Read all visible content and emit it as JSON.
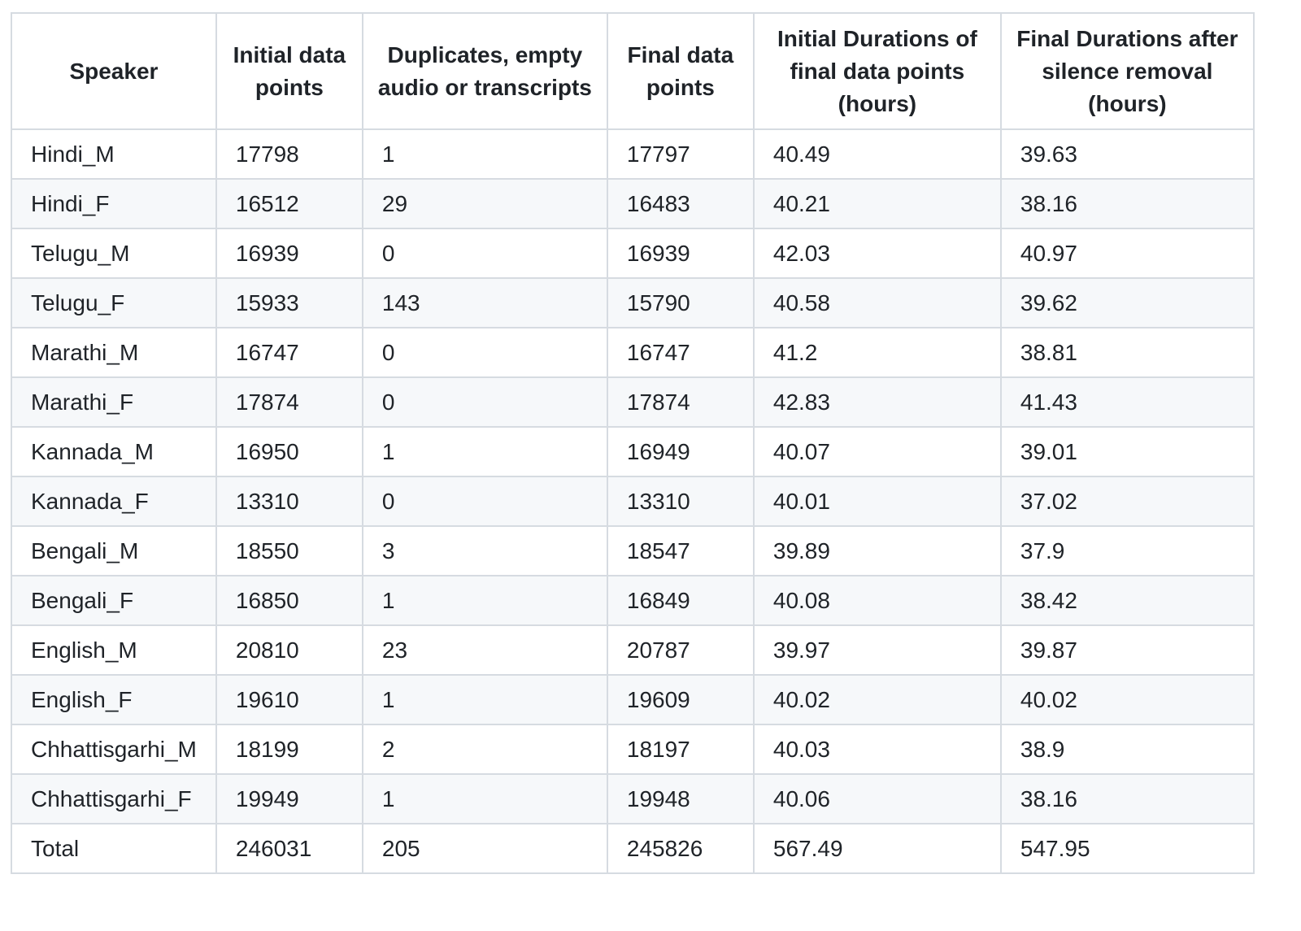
{
  "table": {
    "headers": [
      "Speaker",
      "Initial data points",
      "Duplicates, empty audio or transcripts",
      "Final data points",
      "Initial Durations of final data points (hours)",
      "Final Durations after silence removal (hours)"
    ],
    "rows": [
      [
        "Hindi_M",
        "17798",
        "1",
        "17797",
        "40.49",
        "39.63"
      ],
      [
        "Hindi_F",
        "16512",
        "29",
        "16483",
        "40.21",
        "38.16"
      ],
      [
        "Telugu_M",
        "16939",
        "0",
        "16939",
        "42.03",
        "40.97"
      ],
      [
        "Telugu_F",
        "15933",
        "143",
        "15790",
        "40.58",
        "39.62"
      ],
      [
        "Marathi_M",
        "16747",
        "0",
        "16747",
        "41.2",
        "38.81"
      ],
      [
        "Marathi_F",
        "17874",
        "0",
        "17874",
        "42.83",
        "41.43"
      ],
      [
        "Kannada_M",
        "16950",
        "1",
        "16949",
        "40.07",
        "39.01"
      ],
      [
        "Kannada_F",
        "13310",
        "0",
        "13310",
        "40.01",
        "37.02"
      ],
      [
        "Bengali_M",
        "18550",
        "3",
        "18547",
        "39.89",
        "37.9"
      ],
      [
        "Bengali_F",
        "16850",
        "1",
        "16849",
        "40.08",
        "38.42"
      ],
      [
        "English_M",
        "20810",
        "23",
        "20787",
        "39.97",
        "39.87"
      ],
      [
        "English_F",
        "19610",
        "1",
        "19609",
        "40.02",
        "40.02"
      ],
      [
        "Chhattisgarhi_M",
        "18199",
        "2",
        "18197",
        "40.03",
        "38.9"
      ],
      [
        "Chhattisgarhi_F",
        "19949",
        "1",
        "19948",
        "40.06",
        "38.16"
      ],
      [
        "Total",
        "246031",
        "205",
        "245826",
        "567.49",
        "547.95"
      ]
    ]
  }
}
